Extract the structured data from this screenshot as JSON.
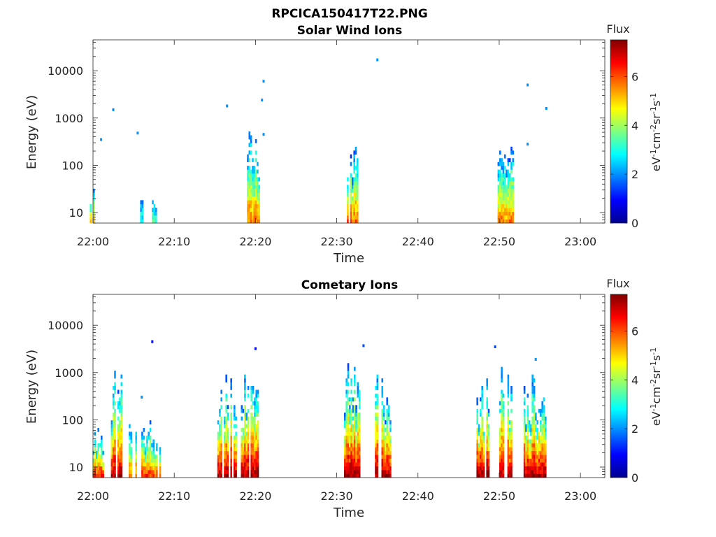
{
  "figure": {
    "title": "RPCICA150417T22.PNG"
  },
  "colors": {
    "axis": "#262626",
    "colormap": "jet"
  },
  "chart_data": [
    {
      "type": "heatmap",
      "title": "Solar Wind Ions",
      "xlabel": "Time",
      "ylabel": "Energy (eV)",
      "x_tick_labels": [
        "22:00",
        "22:10",
        "22:20",
        "22:30",
        "22:40",
        "22:50",
        "23:00"
      ],
      "xlim": [
        "22:00",
        "23:03"
      ],
      "y_scale": "log",
      "y_tick_labels": [
        "10",
        "100",
        "1000",
        "10000"
      ],
      "ylim": [
        6,
        45000
      ],
      "colorbar": {
        "title": "Flux",
        "label": "eV-1cm-2sr-1s-1",
        "range": [
          0,
          7.5
        ],
        "tick_labels": [
          "0",
          "2",
          "4",
          "6"
        ]
      },
      "bursts": [
        {
          "time": "22:00",
          "width_min": 0.8,
          "e_max": 50,
          "peak_flux": 5.2
        },
        {
          "time": "22:06",
          "width_min": 0.4,
          "e_max": 30,
          "peak_flux": 3.0
        },
        {
          "time": "22:07.5",
          "width_min": 0.5,
          "e_max": 18,
          "peak_flux": 3.5
        },
        {
          "time": "22:19.7",
          "width_min": 1.5,
          "e_max": 600,
          "peak_flux": 5.8
        },
        {
          "time": "22:31.8",
          "width_min": 1.5,
          "e_max": 400,
          "peak_flux": 5.8
        },
        {
          "time": "22:50.8",
          "width_min": 2.0,
          "e_max": 300,
          "peak_flux": 5.6
        }
      ],
      "isolated_points": [
        {
          "time": "22:01",
          "energy": 350,
          "flux": 2
        },
        {
          "time": "22:02.5",
          "energy": 1500,
          "flux": 2
        },
        {
          "time": "22:05.5",
          "energy": 480,
          "flux": 2
        },
        {
          "time": "22:16.5",
          "energy": 1800,
          "flux": 2
        },
        {
          "time": "22:21",
          "energy": 6000,
          "flux": 2
        },
        {
          "time": "22:20.8",
          "energy": 2400,
          "flux": 2
        },
        {
          "time": "22:21",
          "energy": 450,
          "flux": 2
        },
        {
          "time": "22:35",
          "energy": 17000,
          "flux": 2
        },
        {
          "time": "22:53.5",
          "energy": 5000,
          "flux": 2
        },
        {
          "time": "22:53.5",
          "energy": 280,
          "flux": 2
        },
        {
          "time": "22:55.8",
          "energy": 1600,
          "flux": 2
        }
      ]
    },
    {
      "type": "heatmap",
      "title": "Cometary Ions",
      "xlabel": "Time",
      "ylabel": "Energy (eV)",
      "x_tick_labels": [
        "22:00",
        "22:10",
        "22:20",
        "22:30",
        "22:40",
        "22:50",
        "23:00"
      ],
      "xlim": [
        "22:00",
        "23:03"
      ],
      "y_scale": "log",
      "y_tick_labels": [
        "10",
        "100",
        "1000",
        "10000"
      ],
      "ylim": [
        6,
        45000
      ],
      "colorbar": {
        "title": "Flux",
        "label": "eV-1cm-2sr-1s-1",
        "range": [
          0,
          7.5
        ],
        "tick_labels": [
          "0",
          "2",
          "4",
          "6"
        ]
      },
      "bursts": [
        {
          "time": "22:00.6",
          "width_min": 1.3,
          "e_max": 70,
          "peak_flux": 6.5
        },
        {
          "time": "22:03",
          "width_min": 1.6,
          "e_max": 1400,
          "peak_flux": 7.0
        },
        {
          "time": "22:04.8",
          "width_min": 1.2,
          "e_max": 70,
          "peak_flux": 5.8
        },
        {
          "time": "22:06.6",
          "width_min": 1.3,
          "e_max": 90,
          "peak_flux": 6.2
        },
        {
          "time": "22:07.8",
          "width_min": 0.9,
          "e_max": 70,
          "peak_flux": 6.0
        },
        {
          "time": "22:16.4",
          "width_min": 2.2,
          "e_max": 1400,
          "peak_flux": 7.2
        },
        {
          "time": "22:19.3",
          "width_min": 2.2,
          "e_max": 1500,
          "peak_flux": 7.3
        },
        {
          "time": "22:31.8",
          "width_min": 2.2,
          "e_max": 1700,
          "peak_flux": 7.2
        },
        {
          "time": "22:35.7",
          "width_min": 2.0,
          "e_max": 1200,
          "peak_flux": 7.2
        },
        {
          "time": "22:48",
          "width_min": 1.6,
          "e_max": 1000,
          "peak_flux": 7.3
        },
        {
          "time": "22:50.8",
          "width_min": 1.6,
          "e_max": 1600,
          "peak_flux": 7.0
        },
        {
          "time": "22:54.4",
          "width_min": 2.8,
          "e_max": 800,
          "peak_flux": 7.2
        }
      ],
      "isolated_points": [
        {
          "time": "22:07.3",
          "energy": 4500,
          "flux": 1
        },
        {
          "time": "22:06",
          "energy": 300,
          "flux": 2
        },
        {
          "time": "22:20",
          "energy": 3200,
          "flux": 1
        },
        {
          "time": "22:33.3",
          "energy": 3700,
          "flux": 1.5
        },
        {
          "time": "22:49.5",
          "energy": 3500,
          "flux": 1.5
        },
        {
          "time": "22:54.5",
          "energy": 1900,
          "flux": 2
        }
      ]
    }
  ]
}
